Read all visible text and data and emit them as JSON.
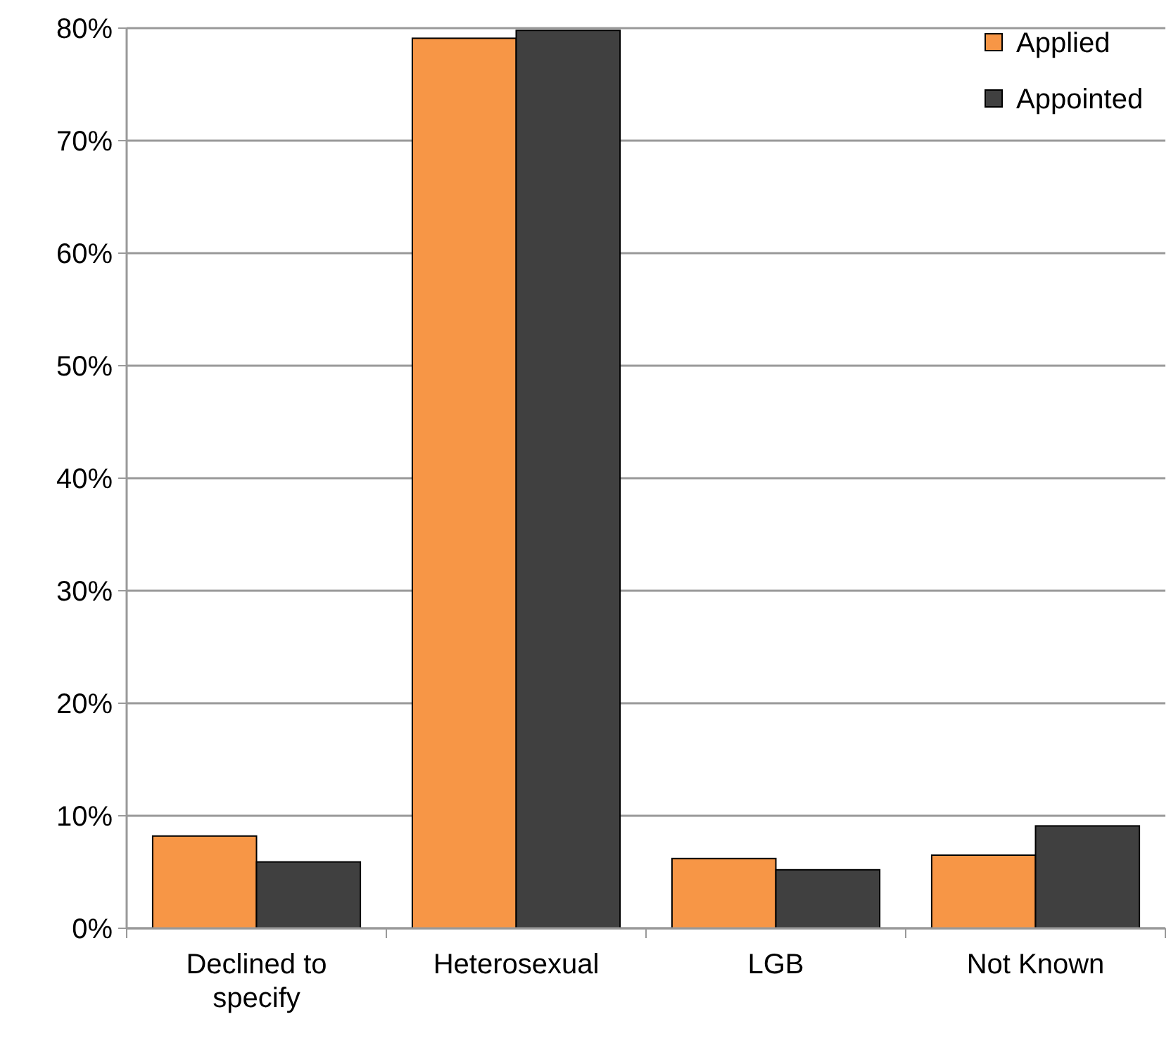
{
  "chart_data": {
    "type": "bar",
    "categories": [
      "Declined to specify",
      "Heterosexual",
      "LGB",
      "Not Known"
    ],
    "series": [
      {
        "name": "Applied",
        "color": "#f79646",
        "values": [
          8.2,
          79.1,
          6.2,
          6.5
        ]
      },
      {
        "name": "Appointed",
        "color": "#404040",
        "values": [
          5.9,
          79.8,
          5.2,
          9.1
        ]
      }
    ],
    "ylim": [
      0,
      80
    ],
    "yticks": [
      {
        "value": 0,
        "label": "0%"
      },
      {
        "value": 10,
        "label": "10%"
      },
      {
        "value": 20,
        "label": "20%"
      },
      {
        "value": 30,
        "label": "30%"
      },
      {
        "value": 40,
        "label": "40%"
      },
      {
        "value": 50,
        "label": "50%"
      },
      {
        "value": 60,
        "label": "60%"
      },
      {
        "value": 70,
        "label": "70%"
      },
      {
        "value": 80,
        "label": "80%"
      }
    ],
    "grid": "y",
    "legend": "top right"
  }
}
